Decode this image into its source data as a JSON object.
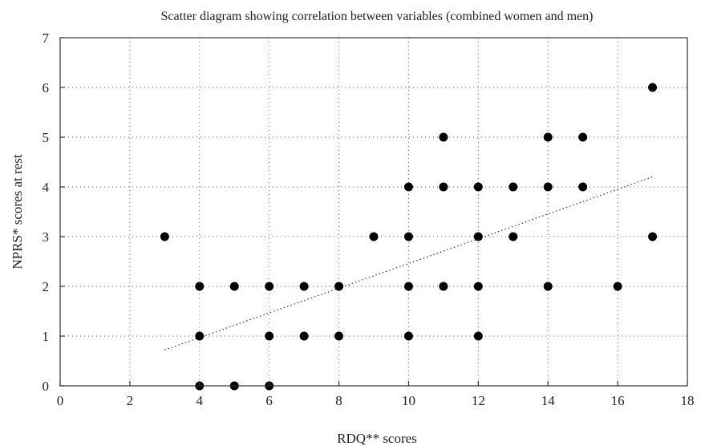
{
  "chart_data": {
    "type": "scatter",
    "title": "Scatter diagram showing correlation between variables (combined women and men)",
    "xlabel": "RDQ** scores",
    "ylabel": "NPRS* scores at rest",
    "xlim": [
      0,
      18
    ],
    "ylim": [
      0,
      7
    ],
    "x_ticks": [
      0,
      2,
      4,
      6,
      8,
      10,
      12,
      14,
      16,
      18
    ],
    "y_ticks": [
      0,
      1,
      2,
      3,
      4,
      5,
      6,
      7
    ],
    "x_tick_labels": [
      "0",
      "2",
      "4",
      "6",
      "8",
      "10",
      "12",
      "14",
      "16",
      "18"
    ],
    "y_tick_labels": [
      "0",
      "1",
      "2",
      "3",
      "4",
      "5",
      "6",
      "7"
    ],
    "grid": true,
    "points": [
      {
        "x": 3,
        "y": 3
      },
      {
        "x": 4,
        "y": 0
      },
      {
        "x": 4,
        "y": 1
      },
      {
        "x": 4,
        "y": 2
      },
      {
        "x": 5,
        "y": 0
      },
      {
        "x": 5,
        "y": 2
      },
      {
        "x": 6,
        "y": 0
      },
      {
        "x": 6,
        "y": 1
      },
      {
        "x": 6,
        "y": 2
      },
      {
        "x": 7,
        "y": 1
      },
      {
        "x": 7,
        "y": 2
      },
      {
        "x": 8,
        "y": 1
      },
      {
        "x": 8,
        "y": 2
      },
      {
        "x": 9,
        "y": 3
      },
      {
        "x": 10,
        "y": 1
      },
      {
        "x": 10,
        "y": 2
      },
      {
        "x": 10,
        "y": 3
      },
      {
        "x": 10,
        "y": 4
      },
      {
        "x": 11,
        "y": 2
      },
      {
        "x": 11,
        "y": 4
      },
      {
        "x": 11,
        "y": 5
      },
      {
        "x": 12,
        "y": 1
      },
      {
        "x": 12,
        "y": 2
      },
      {
        "x": 12,
        "y": 3
      },
      {
        "x": 12,
        "y": 4
      },
      {
        "x": 13,
        "y": 3
      },
      {
        "x": 13,
        "y": 4
      },
      {
        "x": 14,
        "y": 2
      },
      {
        "x": 14,
        "y": 4
      },
      {
        "x": 14,
        "y": 5
      },
      {
        "x": 15,
        "y": 4
      },
      {
        "x": 15,
        "y": 5
      },
      {
        "x": 16,
        "y": 2
      },
      {
        "x": 17,
        "y": 3
      },
      {
        "x": 17,
        "y": 6
      }
    ],
    "trendline": {
      "x": [
        3,
        17
      ],
      "y": [
        0.72,
        4.2
      ]
    }
  }
}
